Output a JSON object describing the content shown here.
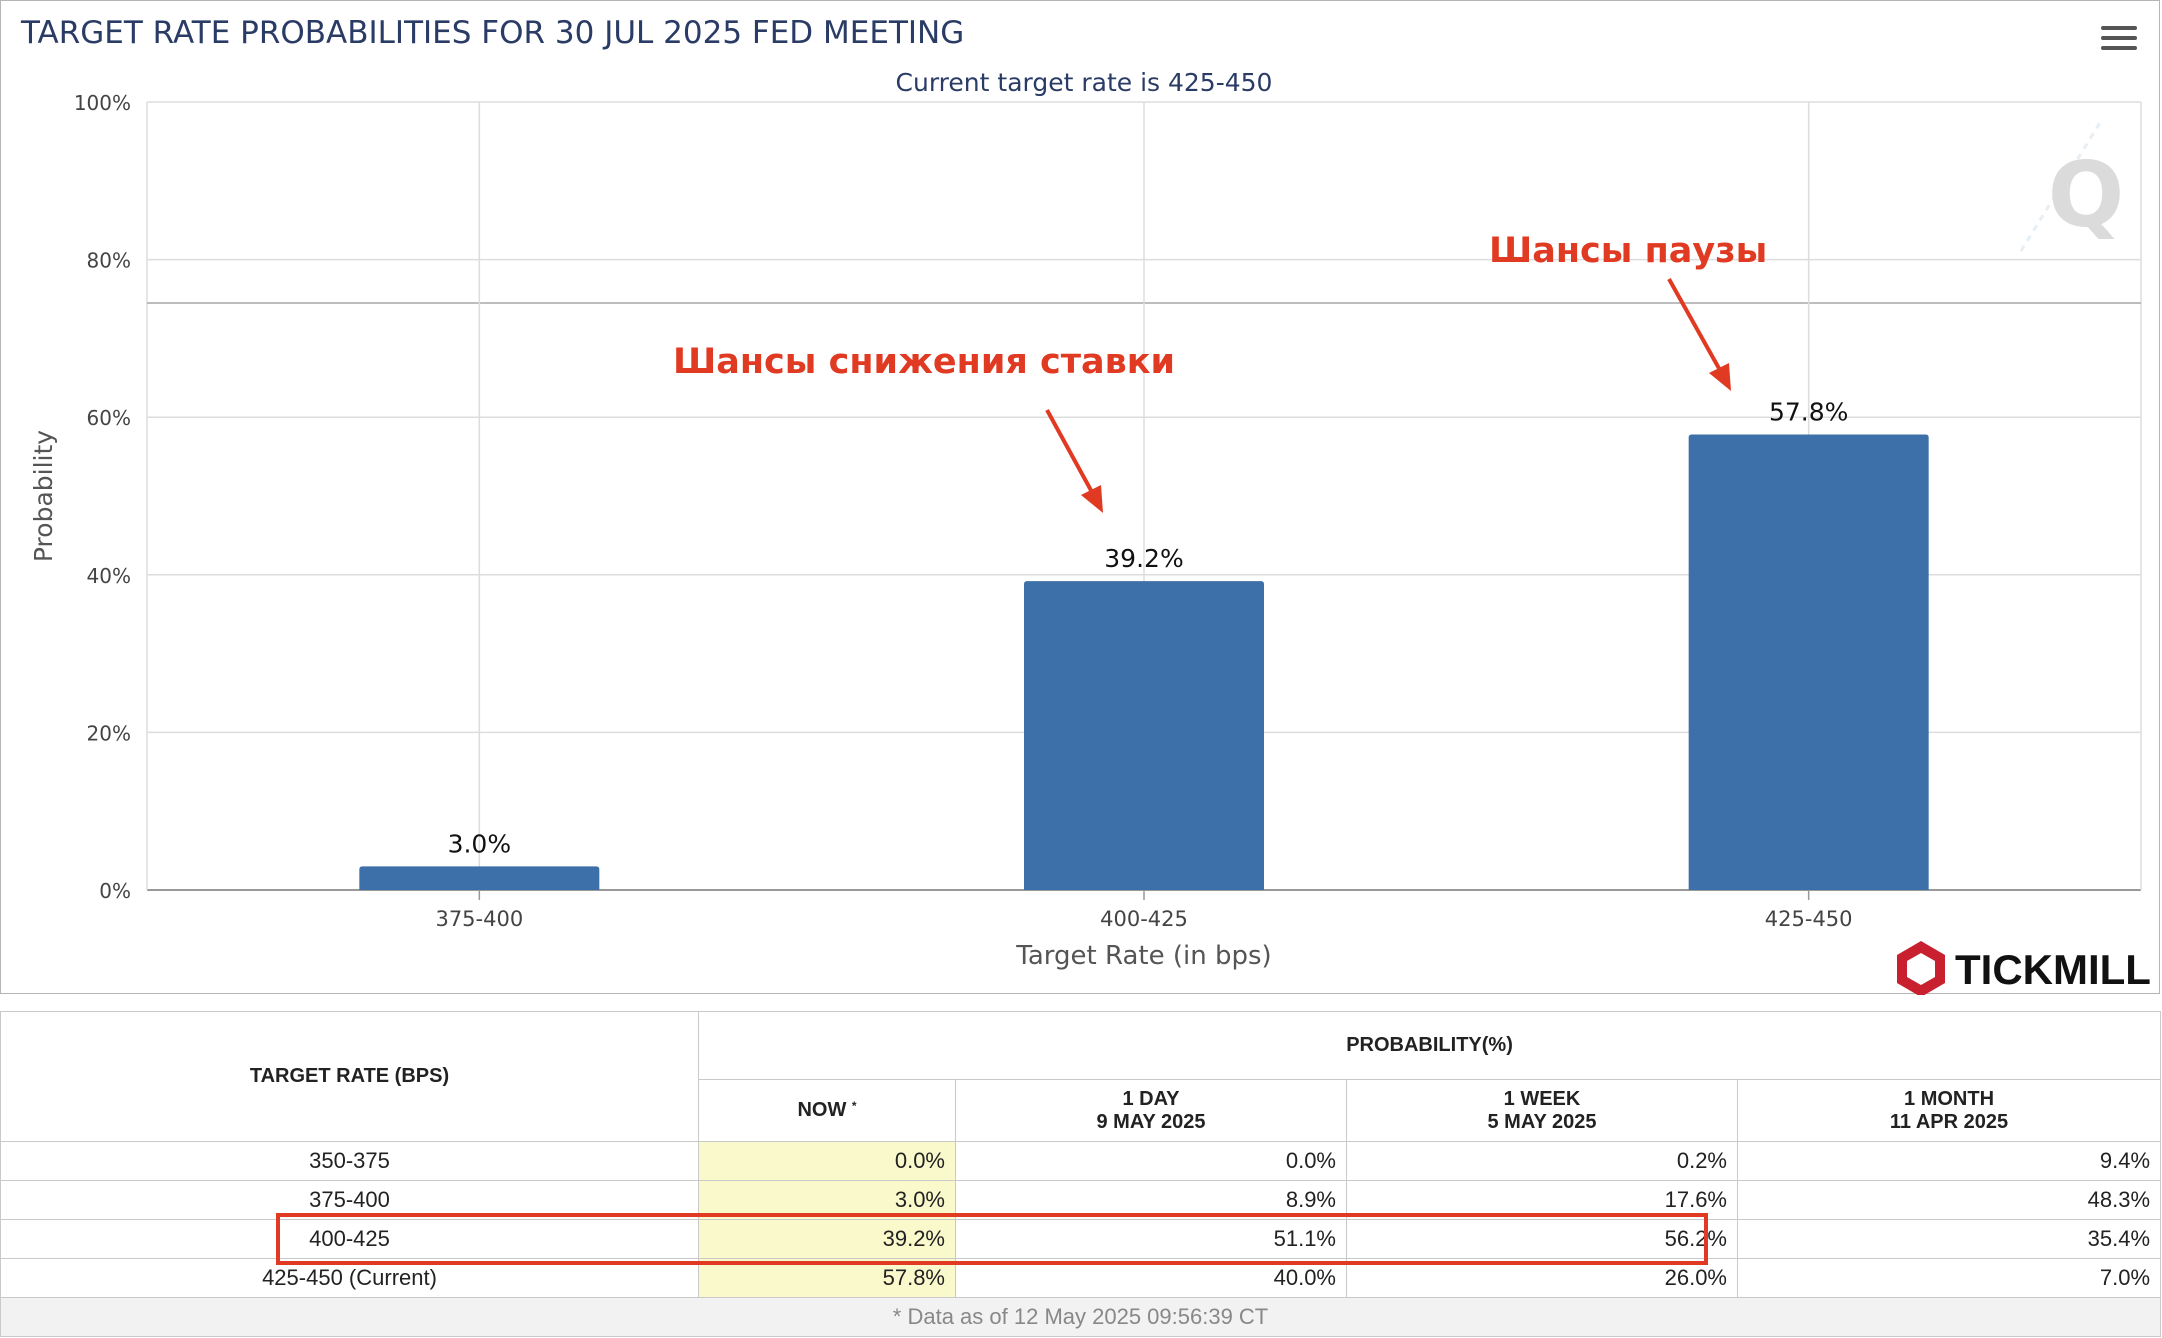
{
  "chart": {
    "title": "TARGET RATE PROBABILITIES FOR 30 JUL 2025 FED MEETING",
    "subtitle": "Current target rate is 425-450",
    "menu_icon": "hamburger-menu-icon",
    "annotations": {
      "pause": "Шансы паузы",
      "cut": "Шансы снижения ставки"
    },
    "brand": "TICKMILL",
    "colors": {
      "bar": "#3d6fa8",
      "annotation": "#e03a22",
      "title": "#2a3b66"
    }
  },
  "chart_data": {
    "type": "bar",
    "title": "TARGET RATE PROBABILITIES FOR 30 JUL 2025 FED MEETING",
    "subtitle": "Current target rate is 425-450",
    "categories": [
      "375-400",
      "400-425",
      "425-450"
    ],
    "values": [
      3.0,
      39.2,
      57.8
    ],
    "data_labels": [
      "3.0%",
      "39.2%",
      "57.8%"
    ],
    "xlabel": "Target Rate (in bps)",
    "ylabel": "Probability",
    "ylim": [
      0,
      100
    ],
    "yticks": [
      "0%",
      "20%",
      "40%",
      "60%",
      "80%",
      "100%"
    ],
    "grid": true
  },
  "table": {
    "header": {
      "target_rate": "TARGET RATE (BPS)",
      "probability": "PROBABILITY(%)",
      "now": "NOW",
      "now_mark": "*",
      "day_label": "1 DAY",
      "day_date": "9 MAY 2025",
      "week_label": "1 WEEK",
      "week_date": "5 MAY 2025",
      "month_label": "1 MONTH",
      "month_date": "11 APR 2025"
    },
    "rows": [
      {
        "rate": "350-375",
        "now": "0.0%",
        "day": "0.0%",
        "week": "0.2%",
        "month": "9.4%"
      },
      {
        "rate": "375-400",
        "now": "3.0%",
        "day": "8.9%",
        "week": "17.6%",
        "month": "48.3%"
      },
      {
        "rate": "400-425",
        "now": "39.2%",
        "day": "51.1%",
        "week": "56.2%",
        "month": "35.4%"
      },
      {
        "rate": "425-450 (Current)",
        "now": "57.8%",
        "day": "40.0%",
        "week": "26.0%",
        "month": "7.0%"
      }
    ],
    "footnote": "* Data as of 12 May 2025 09:56:39 CT"
  }
}
